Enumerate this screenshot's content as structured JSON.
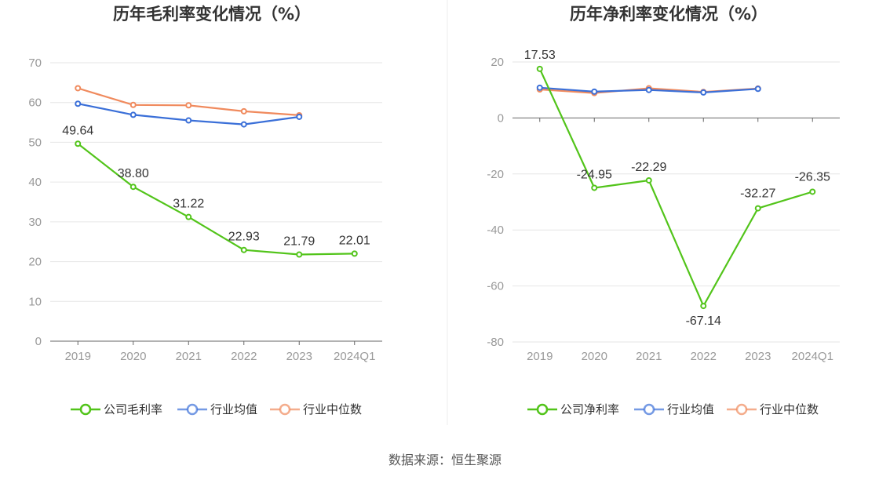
{
  "footer": {
    "source": "数据来源：恒生聚源"
  },
  "colors": {
    "company": "#52c41a",
    "industry_avg": "#3a6fd8",
    "industry_median": "#f08a5d"
  },
  "chart_data": [
    {
      "type": "line",
      "title": "历年毛利率变化情况（%）",
      "categories": [
        "2019",
        "2020",
        "2021",
        "2022",
        "2023",
        "2024Q1"
      ],
      "ylim": [
        0,
        70
      ],
      "yticks": [
        0,
        10,
        20,
        30,
        40,
        50,
        60,
        70
      ],
      "legend_position": "bottom",
      "series": [
        {
          "name": "公司毛利率",
          "key": "company",
          "values": [
            49.64,
            38.8,
            31.22,
            22.93,
            21.79,
            22.01
          ],
          "labels": [
            "49.64",
            "38.80",
            "31.22",
            "22.93",
            "21.79",
            "22.01"
          ]
        },
        {
          "name": "行业均值",
          "key": "industry_avg",
          "values": [
            59.7,
            56.9,
            55.5,
            54.5,
            56.4,
            null
          ]
        },
        {
          "name": "行业中位数",
          "key": "industry_median",
          "values": [
            63.6,
            59.4,
            59.3,
            57.8,
            56.8,
            null
          ]
        }
      ]
    },
    {
      "type": "line",
      "title": "历年净利率变化情况（%）",
      "categories": [
        "2019",
        "2020",
        "2021",
        "2022",
        "2023",
        "2024Q1"
      ],
      "ylim": [
        -80,
        20
      ],
      "yticks": [
        -80,
        -60,
        -40,
        -20,
        0,
        20
      ],
      "legend_position": "bottom",
      "series": [
        {
          "name": "公司净利率",
          "key": "company",
          "values": [
            17.53,
            -24.95,
            -22.29,
            -67.14,
            -32.27,
            -26.35
          ],
          "labels": [
            "17.53",
            "-24.95",
            "-22.29",
            "-67.14",
            "-32.27",
            "-26.35"
          ]
        },
        {
          "name": "行业均值",
          "key": "industry_avg",
          "values": [
            10.8,
            9.4,
            10.0,
            9.1,
            10.4,
            null
          ]
        },
        {
          "name": "行业中位数",
          "key": "industry_median",
          "values": [
            10.2,
            8.9,
            10.6,
            9.3,
            10.5,
            null
          ]
        }
      ]
    }
  ]
}
